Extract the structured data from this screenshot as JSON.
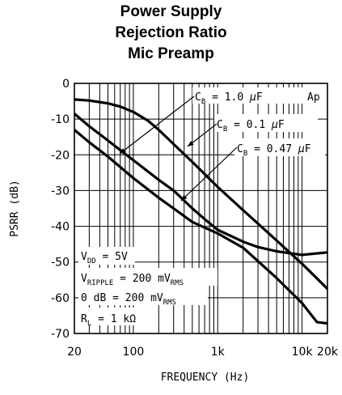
{
  "title_lines": [
    "Power Supply",
    "Rejection Ratio",
    "Mic Preamp"
  ],
  "chart_data": {
    "type": "line",
    "title": "Power Supply Rejection Ratio Mic Preamp",
    "xlabel": "FREQUENCY (Hz)",
    "ylabel": "PSRR (dB)",
    "x_scale": "log",
    "xlim": [
      20,
      20000
    ],
    "ylim": [
      -70,
      0
    ],
    "grid": true,
    "x_ticks": [
      {
        "value": 20,
        "label": "20"
      },
      {
        "value": 100,
        "label": "100"
      },
      {
        "value": 1000,
        "label": "1k"
      },
      {
        "value": 10000,
        "label": "10k"
      },
      {
        "value": 20000,
        "label": "20k"
      }
    ],
    "y_ticks": [
      {
        "value": 0,
        "label": "0"
      },
      {
        "value": -10,
        "label": "-10"
      },
      {
        "value": -20,
        "label": "-20"
      },
      {
        "value": -30,
        "label": "-30"
      },
      {
        "value": -40,
        "label": "-40"
      },
      {
        "value": -50,
        "label": "-50"
      },
      {
        "value": -60,
        "label": "-60"
      },
      {
        "value": -70,
        "label": "-70"
      }
    ],
    "series": [
      {
        "name": "CB = 1.0 µF",
        "x": [
          20,
          30,
          50,
          70,
          100,
          150,
          200,
          300,
          500,
          1000,
          2000,
          5000,
          10000,
          20000
        ],
        "y": [
          -4.5,
          -4.8,
          -5.6,
          -6.5,
          -8,
          -10.5,
          -13,
          -17,
          -22,
          -29,
          -35.5,
          -44,
          -50.5,
          -57.5
        ]
      },
      {
        "name": "CB = 0.1 µF",
        "x": [
          20,
          30,
          50,
          70,
          100,
          200,
          300,
          500,
          700,
          1000,
          2000,
          3000,
          5000,
          10000,
          20000
        ],
        "y": [
          -8.5,
          -12,
          -16,
          -18.7,
          -21.5,
          -27,
          -30,
          -35,
          -38,
          -41,
          -44.3,
          -45.8,
          -47,
          -48,
          -47.3
        ]
      },
      {
        "name": "CB = 0.47 µF",
        "x": [
          20,
          30,
          50,
          100,
          200,
          300,
          500,
          1000,
          2000,
          5000,
          10000,
          15000,
          20000
        ],
        "y": [
          -13,
          -16.5,
          -20.5,
          -26.5,
          -32,
          -35,
          -38.8,
          -42,
          -46,
          -54.5,
          -61.5,
          -66.8,
          -67.2
        ]
      }
    ],
    "annotations": [
      {
        "label": "CB = 1.0 µF",
        "parts": [
          [
            "C",
            ""
          ],
          [
            "B",
            "sub"
          ],
          [
            " = 1.0 ",
            ""
          ],
          [
            "µ",
            ""
          ],
          [
            "F",
            ""
          ]
        ]
      },
      {
        "label": "CB = 0.1 µF",
        "parts": [
          [
            "C",
            ""
          ],
          [
            "B",
            "sub"
          ],
          [
            " = 0.1 ",
            ""
          ],
          [
            "µ",
            ""
          ],
          [
            "F",
            ""
          ]
        ]
      },
      {
        "label": "CB = 0.47 µF",
        "parts": [
          [
            "C",
            ""
          ],
          [
            "B",
            "sub"
          ],
          [
            " = 0.47 ",
            ""
          ],
          [
            "µ",
            ""
          ],
          [
            "F",
            ""
          ]
        ]
      },
      {
        "label": "Ap",
        "parts": [
          [
            "Ap",
            ""
          ]
        ]
      },
      {
        "label": "VDD = 5V",
        "parts": [
          [
            "V",
            ""
          ],
          [
            "DD",
            "sub"
          ],
          [
            " = 5V",
            ""
          ]
        ]
      },
      {
        "label": "VRIPPLE = 200 mVRMS",
        "parts": [
          [
            "V",
            ""
          ],
          [
            "RIPPLE",
            "sub"
          ],
          [
            " = 200 mV",
            ""
          ],
          [
            "RMS",
            "sub"
          ]
        ]
      },
      {
        "label": "0 dB = 200 mVRMS",
        "parts": [
          [
            "0 dB = 200 mV",
            ""
          ],
          [
            "RMS",
            "sub"
          ]
        ]
      },
      {
        "label": "RL = 1 kΩ",
        "parts": [
          [
            "R",
            ""
          ],
          [
            "L",
            "sub"
          ],
          [
            " = 1 k",
            ""
          ],
          [
            "Ω",
            ""
          ]
        ]
      }
    ]
  }
}
